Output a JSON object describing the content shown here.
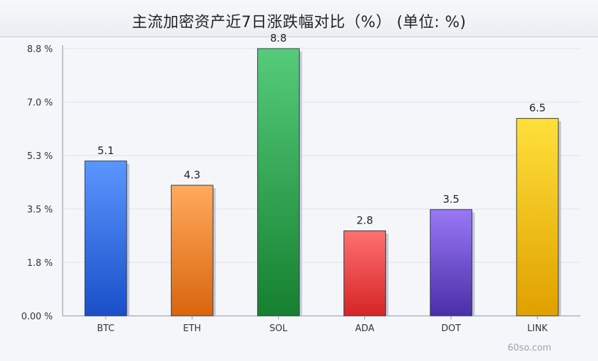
{
  "chart_data": {
    "type": "bar",
    "title": "主流加密资产近7日涨跌幅对比（%） (单位: %)",
    "categories": [
      "BTC",
      "ETH",
      "SOL",
      "ADA",
      "DOT",
      "LINK"
    ],
    "values": [
      5.1,
      4.3,
      8.8,
      2.8,
      3.5,
      6.5
    ],
    "value_labels": [
      "5.1",
      "4.3",
      "8.8",
      "2.8",
      "3.5",
      "6.5"
    ],
    "yticks": [
      0,
      1.76,
      3.52,
      5.28,
      7.04,
      8.8
    ],
    "ytick_labels": [
      "0.00 %",
      "1.8 %",
      "3.5 %",
      "5.3 %",
      "7.0 %",
      "8.8 %"
    ],
    "ylim": [
      0,
      8.8
    ],
    "xlabel": "",
    "ylabel": "",
    "grid": true,
    "legend": "none",
    "colors": [
      [
        "#5a96ff",
        "#1a4fc8"
      ],
      [
        "#ffaa5c",
        "#d9650e"
      ],
      [
        "#55cc7a",
        "#158030"
      ],
      [
        "#ff7070",
        "#d42525"
      ],
      [
        "#9a78f5",
        "#4a2ea8"
      ],
      [
        "#ffe03a",
        "#e0a000"
      ]
    ]
  },
  "watermark": "60so.com"
}
